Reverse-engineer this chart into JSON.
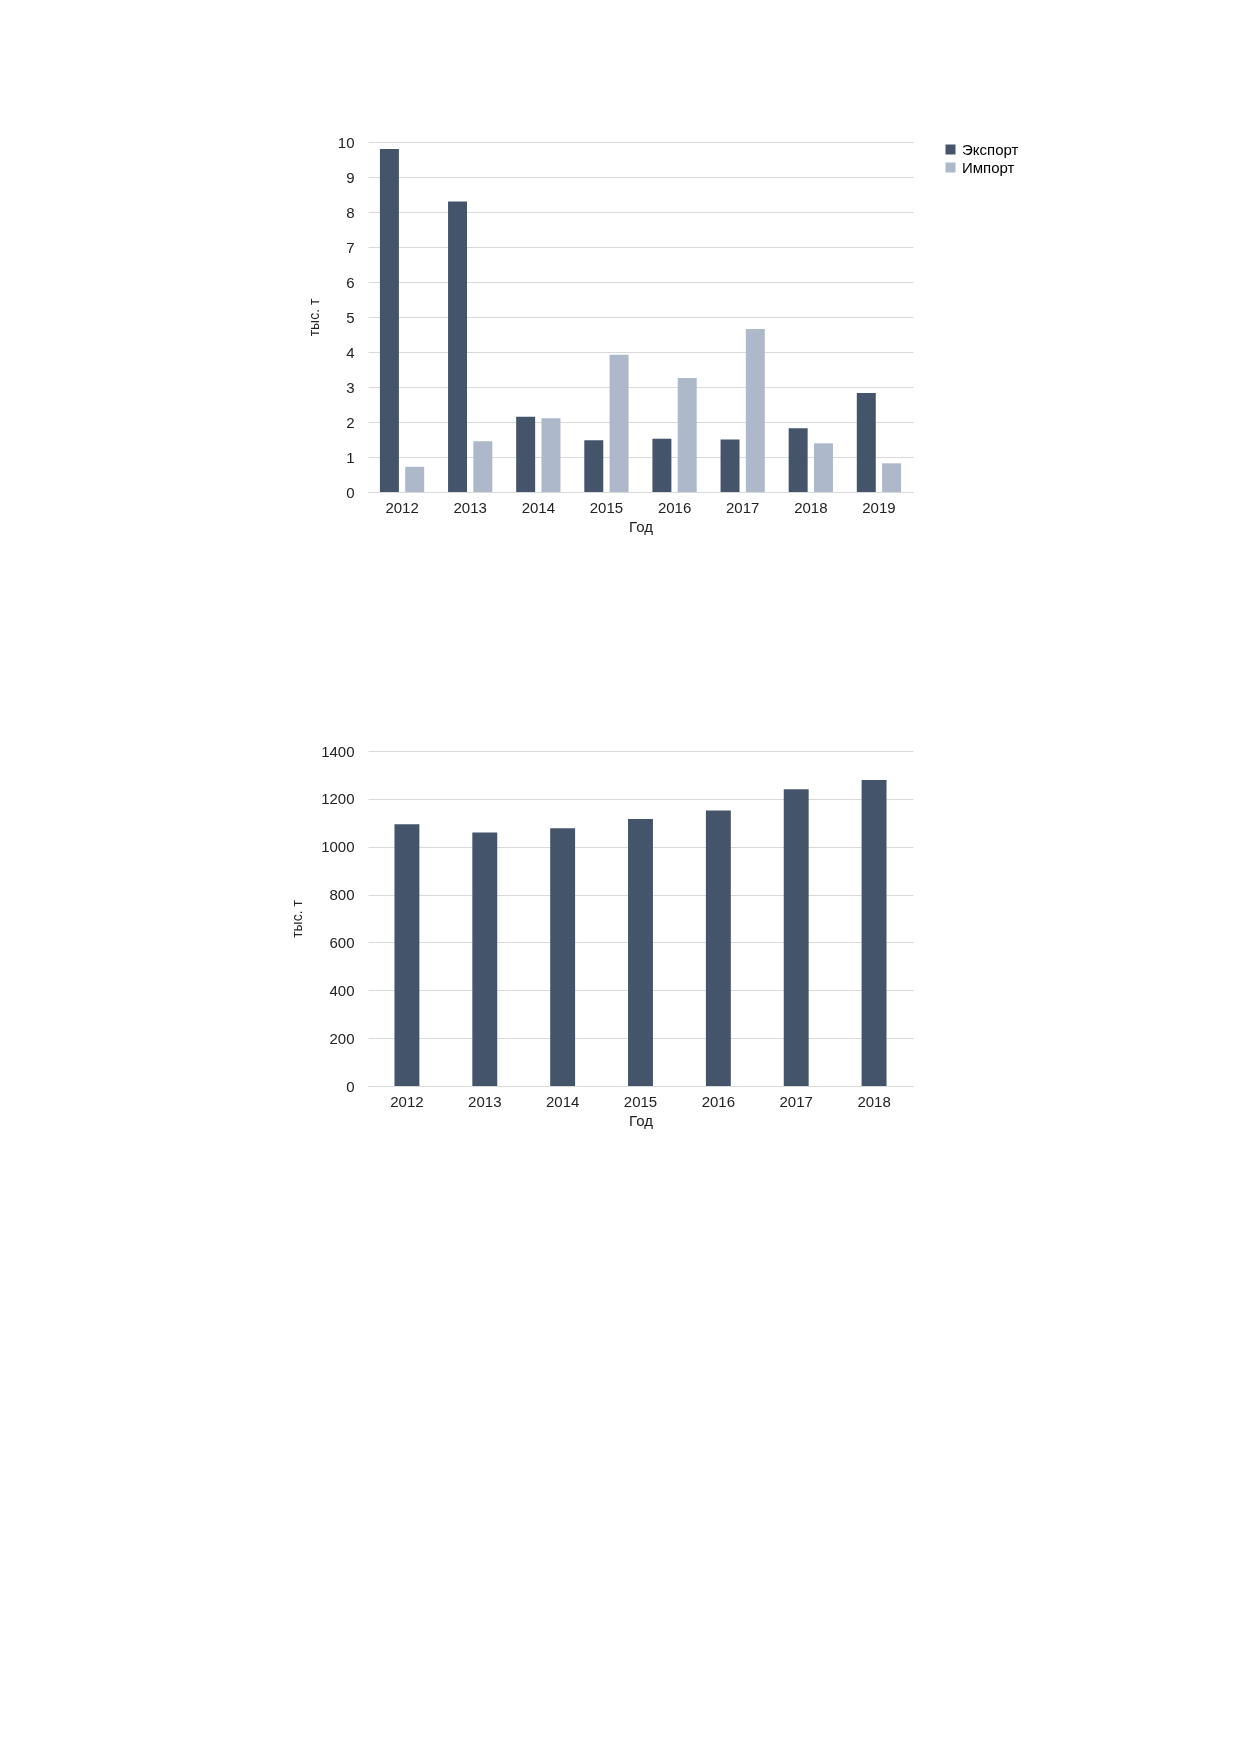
{
  "chart_data": [
    {
      "type": "bar",
      "categories": [
        "2012",
        "2013",
        "2014",
        "2015",
        "2016",
        "2017",
        "2018",
        "2019"
      ],
      "xlabel": "Год",
      "ylabel": "тыс. т",
      "series": [
        {
          "name": "Экспорт",
          "color": "#44546a",
          "values": [
            9.8,
            8.3,
            2.15,
            1.48,
            1.52,
            1.5,
            1.82,
            2.83
          ]
        },
        {
          "name": "Импорт",
          "color": "#adb9ca",
          "values": [
            0.72,
            1.45,
            2.11,
            3.92,
            3.26,
            4.66,
            1.39,
            0.82
          ]
        }
      ],
      "ylim": [
        0,
        10
      ],
      "yticks": [
        0,
        1,
        2,
        3,
        4,
        5,
        6,
        7,
        8,
        9,
        10
      ],
      "grid": "y",
      "legend": "right"
    },
    {
      "type": "bar",
      "categories": [
        "2012",
        "2013",
        "2014",
        "2015",
        "2016",
        "2017",
        "2018"
      ],
      "xlabel": "Год",
      "ylabel": "тыс. т",
      "series": [
        {
          "color": "#44546a",
          "values": [
            1094,
            1059,
            1077,
            1116,
            1151,
            1240,
            1279
          ]
        }
      ],
      "ylim": [
        0,
        1400
      ],
      "yticks": [
        0,
        200,
        400,
        600,
        800,
        1000,
        1200,
        1400
      ],
      "grid": "y"
    }
  ]
}
